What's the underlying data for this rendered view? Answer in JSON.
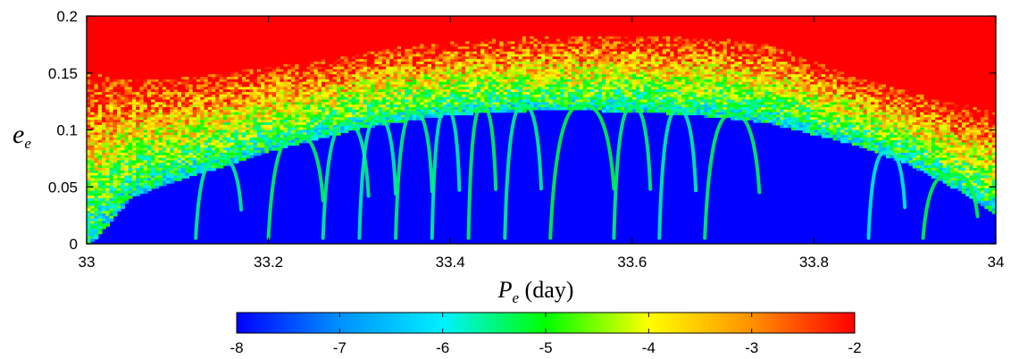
{
  "chart_data": {
    "type": "heatmap",
    "title": "",
    "xlabel": {
      "symbol": "P",
      "subscript": "e",
      "unit": " (day)"
    },
    "ylabel": {
      "symbol": "e",
      "subscript": "e"
    },
    "xlim": [
      33,
      34
    ],
    "ylim": [
      0,
      0.2
    ],
    "xticks": [
      33,
      33.2,
      33.4,
      33.6,
      33.8,
      34
    ],
    "xtick_labels": [
      "33",
      "33.2",
      "33.4",
      "33.6",
      "33.8",
      "34"
    ],
    "yticks": [
      0,
      0.05,
      0.1,
      0.15,
      0.2
    ],
    "ytick_labels": [
      "0",
      "0.05",
      "0.1",
      "0.15",
      "0.2"
    ],
    "grid": false,
    "colorbar": {
      "orientation": "horizontal",
      "placement": "bottom",
      "range": [
        -8,
        -2
      ],
      "ticks": [
        -8,
        -7,
        -6,
        -5,
        -4,
        -3,
        -2
      ],
      "tick_labels": [
        "-8",
        "-7",
        "-6",
        "-5",
        "-4",
        "-3",
        "-2"
      ],
      "colormap": [
        "#0000ff",
        "#0090ff",
        "#00f0ff",
        "#00ff00",
        "#ffff00",
        "#ff9000",
        "#ff0000"
      ]
    },
    "regions": {
      "stable_value": -8,
      "chaotic_value": -2,
      "chaos_boundary_e": [
        {
          "x": 33.0,
          "e": 0.135
        },
        {
          "x": 33.05,
          "e": 0.13
        },
        {
          "x": 33.1,
          "e": 0.13
        },
        {
          "x": 33.15,
          "e": 0.135
        },
        {
          "x": 33.2,
          "e": 0.14
        },
        {
          "x": 33.25,
          "e": 0.145
        },
        {
          "x": 33.3,
          "e": 0.152
        },
        {
          "x": 33.35,
          "e": 0.158
        },
        {
          "x": 33.4,
          "e": 0.162
        },
        {
          "x": 33.45,
          "e": 0.165
        },
        {
          "x": 33.5,
          "e": 0.167
        },
        {
          "x": 33.55,
          "e": 0.168
        },
        {
          "x": 33.6,
          "e": 0.168
        },
        {
          "x": 33.65,
          "e": 0.167
        },
        {
          "x": 33.7,
          "e": 0.165
        },
        {
          "x": 33.75,
          "e": 0.16
        },
        {
          "x": 33.8,
          "e": 0.145
        },
        {
          "x": 33.85,
          "e": 0.13
        },
        {
          "x": 33.9,
          "e": 0.12
        },
        {
          "x": 33.95,
          "e": 0.11
        },
        {
          "x": 34.0,
          "e": 0.1
        }
      ],
      "stable_boundary_e": [
        {
          "x": 33.0,
          "e": 0.0
        },
        {
          "x": 33.05,
          "e": 0.045
        },
        {
          "x": 33.1,
          "e": 0.06
        },
        {
          "x": 33.15,
          "e": 0.072
        },
        {
          "x": 33.2,
          "e": 0.085
        },
        {
          "x": 33.25,
          "e": 0.095
        },
        {
          "x": 33.3,
          "e": 0.105
        },
        {
          "x": 33.35,
          "e": 0.112
        },
        {
          "x": 33.4,
          "e": 0.117
        },
        {
          "x": 33.45,
          "e": 0.12
        },
        {
          "x": 33.5,
          "e": 0.121
        },
        {
          "x": 33.55,
          "e": 0.121
        },
        {
          "x": 33.6,
          "e": 0.12
        },
        {
          "x": 33.65,
          "e": 0.118
        },
        {
          "x": 33.7,
          "e": 0.115
        },
        {
          "x": 33.75,
          "e": 0.11
        },
        {
          "x": 33.8,
          "e": 0.1
        },
        {
          "x": 33.85,
          "e": 0.09
        },
        {
          "x": 33.9,
          "e": 0.075
        },
        {
          "x": 33.95,
          "e": 0.055
        },
        {
          "x": 34.0,
          "e": 0.03
        }
      ],
      "resonance_arcs": [
        {
          "x0": 33.12,
          "x1": 33.17,
          "e_top": 0.075,
          "value": -5.5
        },
        {
          "x0": 33.2,
          "x1": 33.26,
          "e_top": 0.095,
          "value": -5.3
        },
        {
          "x0": 33.26,
          "x1": 33.31,
          "e_top": 0.105,
          "value": -5.5
        },
        {
          "x0": 33.3,
          "x1": 33.34,
          "e_top": 0.11,
          "value": -5.6
        },
        {
          "x0": 33.34,
          "x1": 33.38,
          "e_top": 0.115,
          "value": -5.4
        },
        {
          "x0": 33.38,
          "x1": 33.41,
          "e_top": 0.118,
          "value": -5.6
        },
        {
          "x0": 33.42,
          "x1": 33.45,
          "e_top": 0.12,
          "value": -5.3
        },
        {
          "x0": 33.46,
          "x1": 33.5,
          "e_top": 0.121,
          "value": -5.5
        },
        {
          "x0": 33.51,
          "x1": 33.58,
          "e_top": 0.121,
          "value": -5.2
        },
        {
          "x0": 33.58,
          "x1": 33.62,
          "e_top": 0.12,
          "value": -5.4
        },
        {
          "x0": 33.63,
          "x1": 33.67,
          "e_top": 0.117,
          "value": -5.6
        },
        {
          "x0": 33.68,
          "x1": 33.74,
          "e_top": 0.113,
          "value": -5.3
        },
        {
          "x0": 33.86,
          "x1": 33.9,
          "e_top": 0.08,
          "value": -5.8
        },
        {
          "x0": 33.92,
          "x1": 33.98,
          "e_top": 0.06,
          "value": -5.2
        }
      ]
    }
  }
}
